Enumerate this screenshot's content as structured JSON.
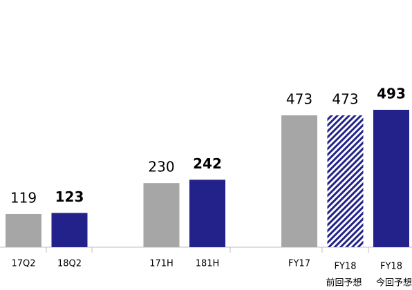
{
  "chart_data": {
    "type": "bar",
    "categories": [
      "17Q2",
      "18Q2",
      null,
      "171H",
      "181H",
      null,
      "FY17",
      "FY18",
      "FY18"
    ],
    "sublabels": [
      null,
      null,
      null,
      null,
      null,
      null,
      null,
      "前回予想",
      "今回予想"
    ],
    "values": [
      119,
      123,
      null,
      230,
      242,
      null,
      473,
      473,
      493
    ],
    "colors": [
      "#a6a6a6",
      "#22228a",
      null,
      "#a6a6a6",
      "#22228a",
      null,
      "#a6a6a6",
      "#22228a",
      "#22228a"
    ],
    "hatched": [
      false,
      false,
      null,
      false,
      false,
      null,
      false,
      true,
      false
    ],
    "bold": [
      false,
      true,
      null,
      false,
      true,
      null,
      false,
      false,
      true
    ]
  }
}
